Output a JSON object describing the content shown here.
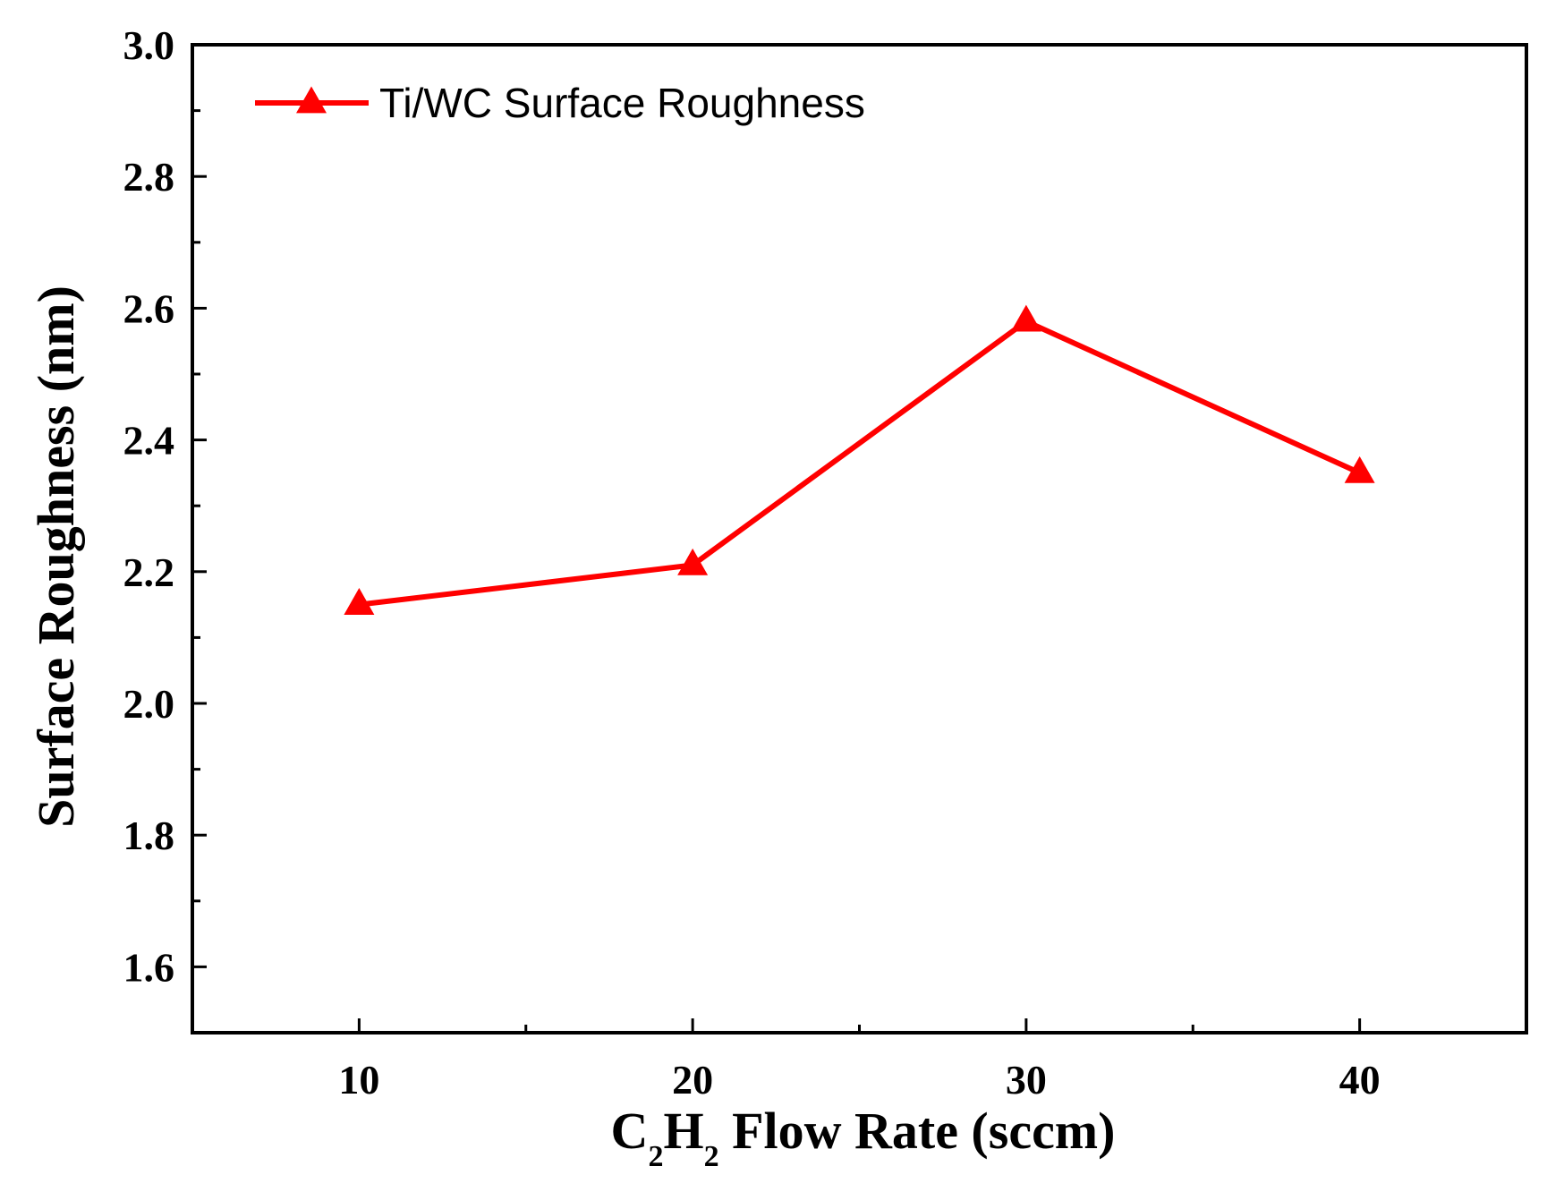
{
  "chart_data": {
    "type": "line",
    "title": "",
    "xlabel": {
      "prefix": "C",
      "sub1": "2",
      "mid": "H",
      "sub2": "2",
      "suffix": " Flow Rate (sccm)"
    },
    "ylabel": "Surface Roughness (nm)",
    "xlim": [
      5,
      45
    ],
    "ylim": [
      1.5,
      3.0
    ],
    "x_ticks": [
      10,
      20,
      30,
      40
    ],
    "x_tick_labels": [
      "10",
      "20",
      "30",
      "40"
    ],
    "x_minor_ticks": [
      15,
      25,
      35
    ],
    "y_ticks": [
      1.6,
      1.8,
      2.0,
      2.2,
      2.4,
      2.6,
      2.8,
      3.0
    ],
    "y_tick_labels": [
      "1.6",
      "1.8",
      "2.0",
      "2.2",
      "2.4",
      "2.6",
      "2.8",
      "3.0"
    ],
    "y_minor_ticks": [
      1.7,
      1.9,
      2.1,
      2.3,
      2.5,
      2.7,
      2.9
    ],
    "grid": false,
    "legend_position": "top-left",
    "series": [
      {
        "name": "Ti/WC Surface Roughness",
        "color": "#ff0000",
        "marker": "triangle",
        "x": [
          10,
          20,
          30,
          40
        ],
        "y": [
          2.15,
          2.21,
          2.58,
          2.35
        ]
      }
    ]
  }
}
